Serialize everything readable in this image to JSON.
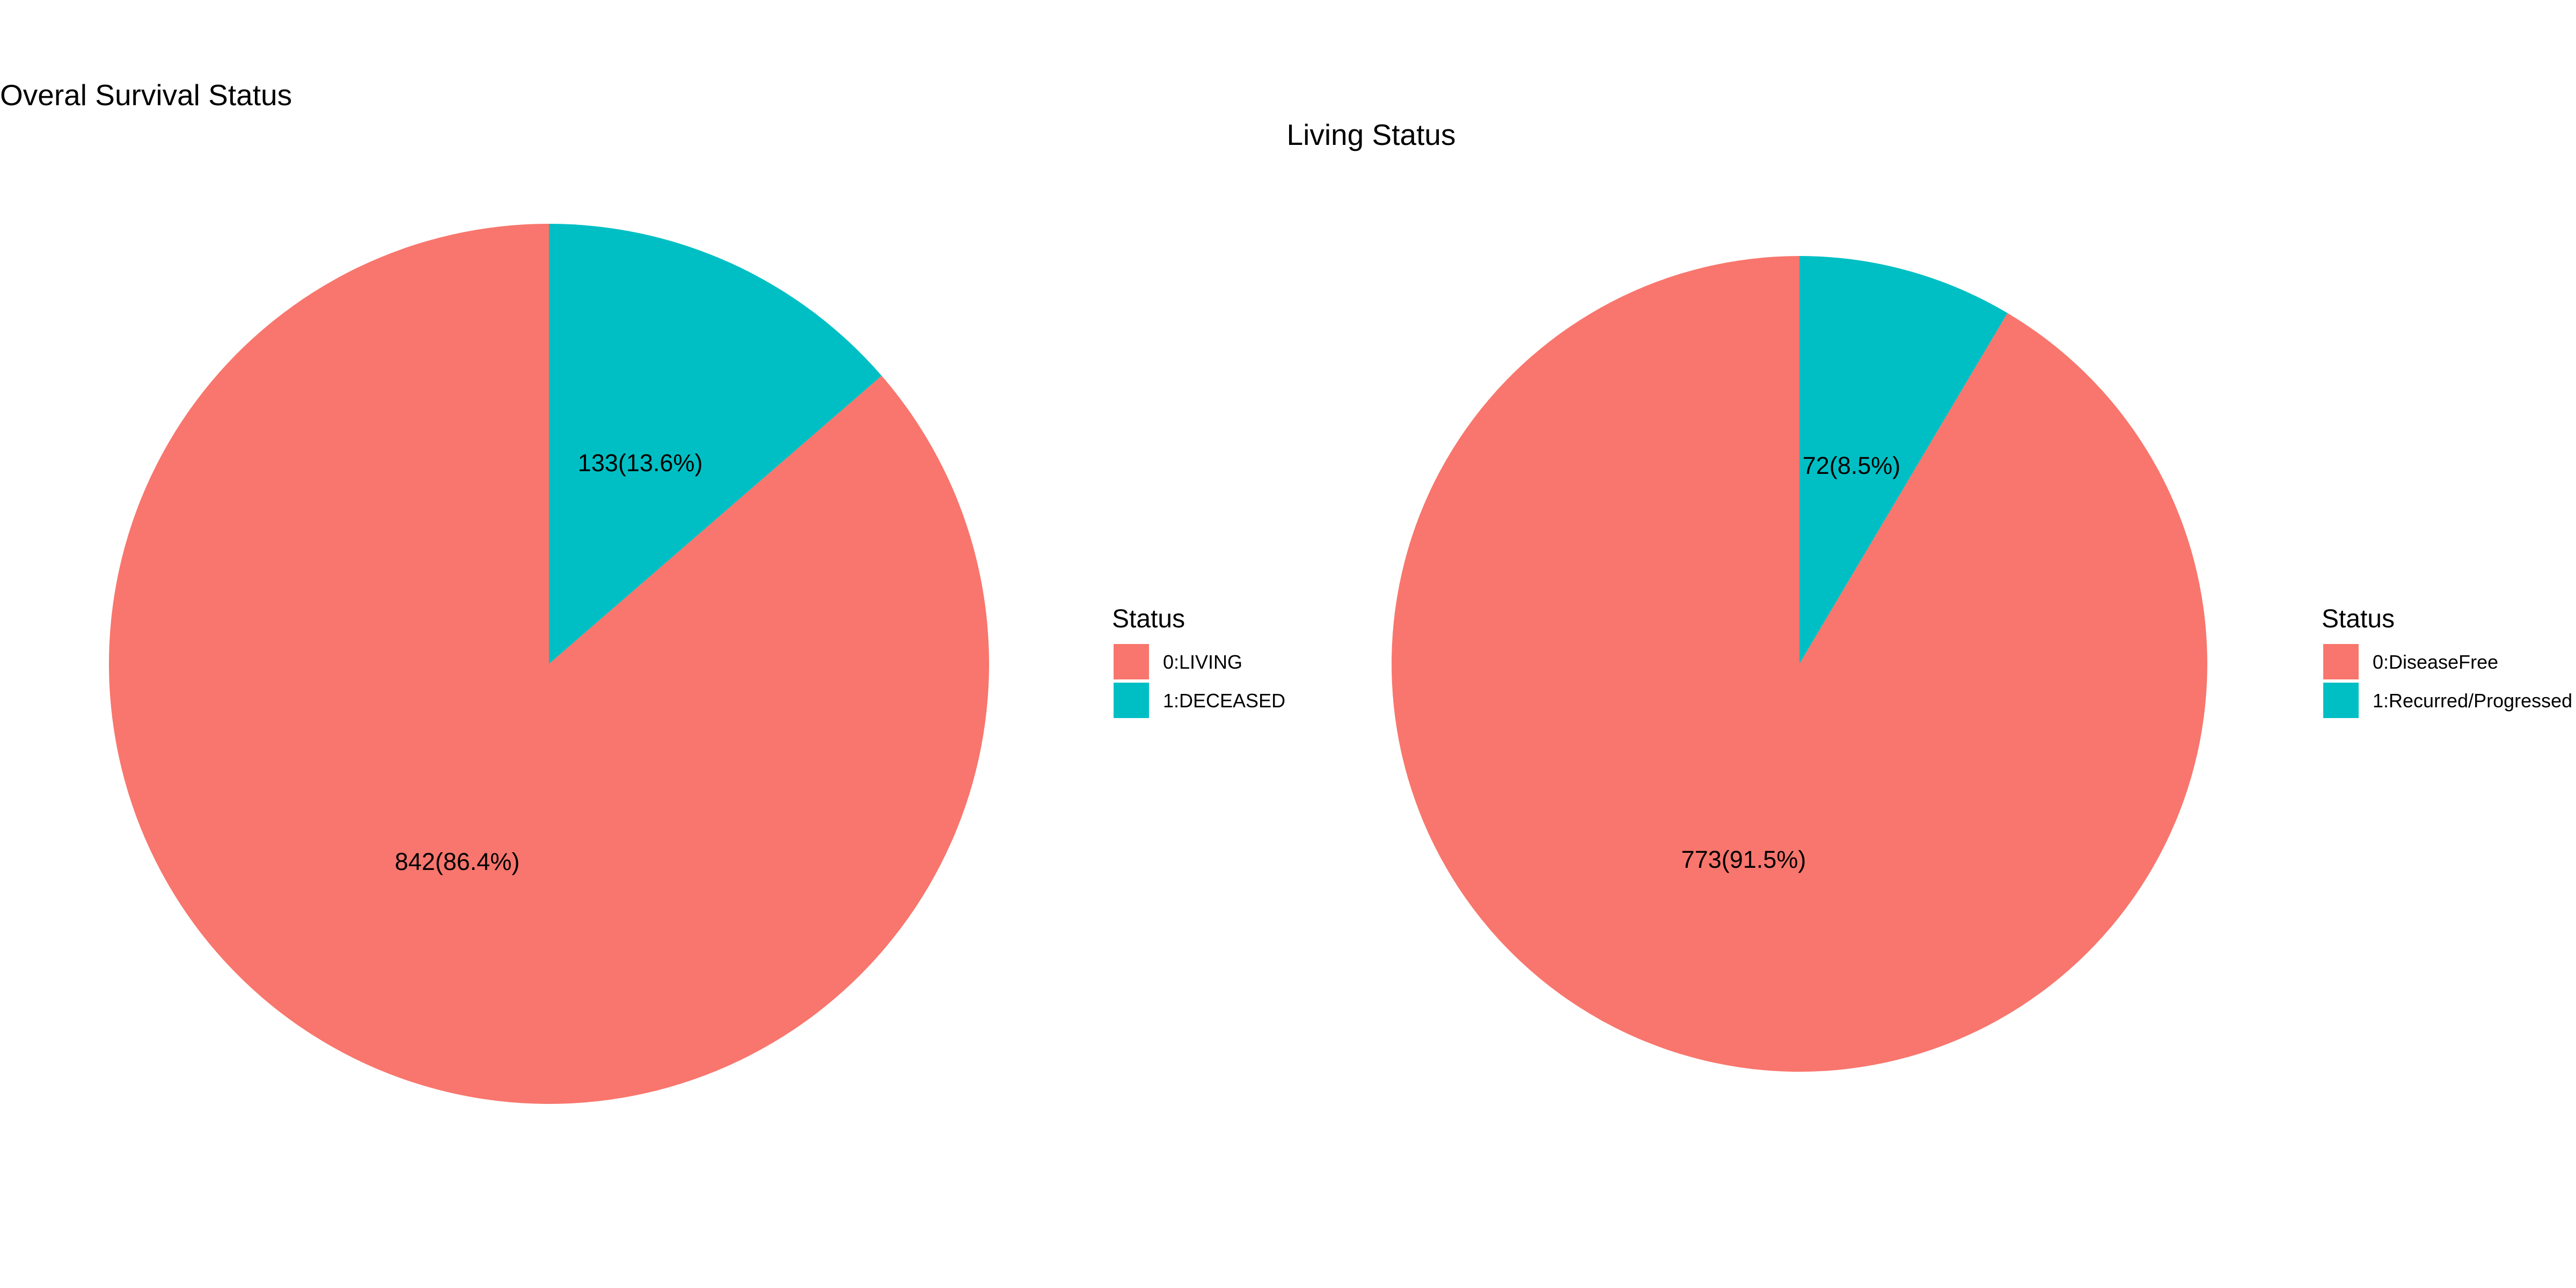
{
  "chart_data": [
    {
      "type": "pie",
      "title": "Overal Survival Status",
      "legend": {
        "title": "Status",
        "position": "right"
      },
      "slices": [
        {
          "name": "0:LIVING",
          "value": 842,
          "percent": 86.4,
          "label": "842(86.4%)",
          "color": "#F8766D"
        },
        {
          "name": "1:DECEASED",
          "value": 133,
          "percent": 13.6,
          "label": "133(13.6%)",
          "color": "#00BFC4"
        }
      ]
    },
    {
      "type": "pie",
      "title": "Living Status",
      "legend": {
        "title": "Status",
        "position": "right"
      },
      "slices": [
        {
          "name": "0:DiseaseFree",
          "value": 773,
          "percent": 91.5,
          "label": "773(91.5%)",
          "color": "#F8766D"
        },
        {
          "name": "1:Recurred/Progressed",
          "value": 72,
          "percent": 8.5,
          "label": "72(8.5%)",
          "color": "#00BFC4"
        }
      ]
    }
  ]
}
